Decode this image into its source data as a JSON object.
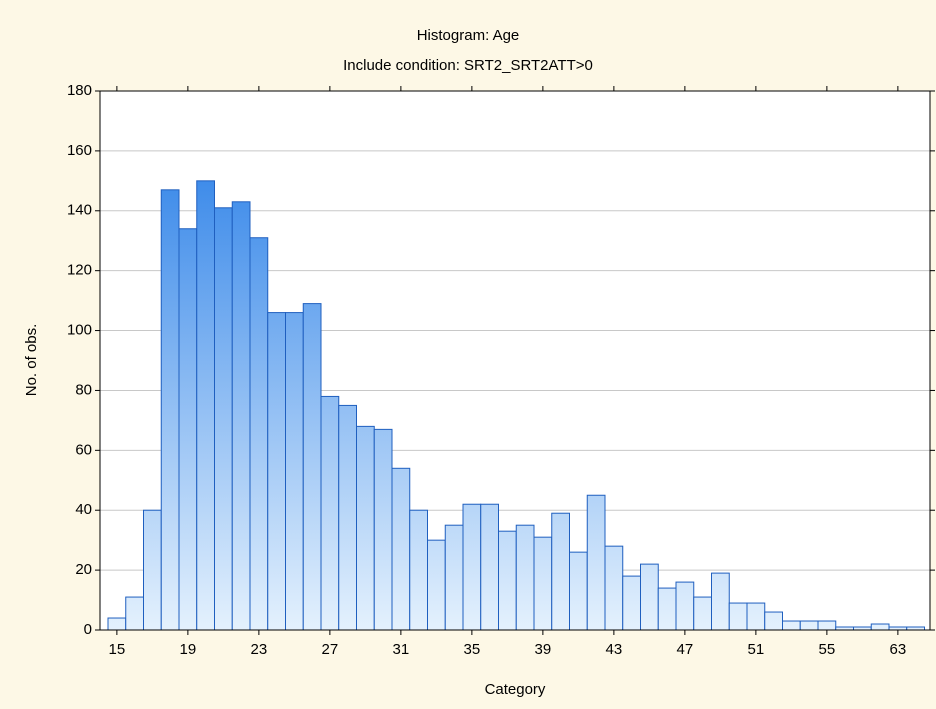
{
  "chart_data": {
    "type": "bar",
    "title": "Histogram: Age",
    "subtitle": "Include condition: SRT2_SRT2ATT>0",
    "xlabel": "Category",
    "ylabel": "No. of obs.",
    "categories": [
      "15",
      null,
      null,
      null,
      "19",
      null,
      null,
      null,
      "23",
      null,
      null,
      null,
      "27",
      null,
      null,
      null,
      "31",
      null,
      null,
      null,
      "35",
      null,
      null,
      null,
      "39",
      null,
      null,
      null,
      "43",
      null,
      null,
      null,
      "47",
      null,
      null,
      null,
      "51",
      null,
      null,
      null,
      "55",
      null,
      null,
      null,
      "63",
      null
    ],
    "values": [
      4,
      11,
      40,
      147,
      134,
      150,
      141,
      143,
      131,
      106,
      106,
      109,
      78,
      75,
      68,
      67,
      54,
      40,
      30,
      35,
      42,
      42,
      33,
      35,
      31,
      39,
      26,
      45,
      28,
      18,
      22,
      14,
      16,
      11,
      19,
      9,
      9,
      6,
      3,
      3,
      3,
      1,
      1,
      2,
      1,
      1
    ],
    "color_top": "#1e78e6",
    "color_bottom": "#e4f1fd",
    "edge_color": "#1f5fbf",
    "ylim": [
      0,
      180
    ],
    "yticks": [
      0,
      20,
      40,
      60,
      80,
      100,
      120,
      140,
      160,
      180
    ],
    "grid": true
  }
}
